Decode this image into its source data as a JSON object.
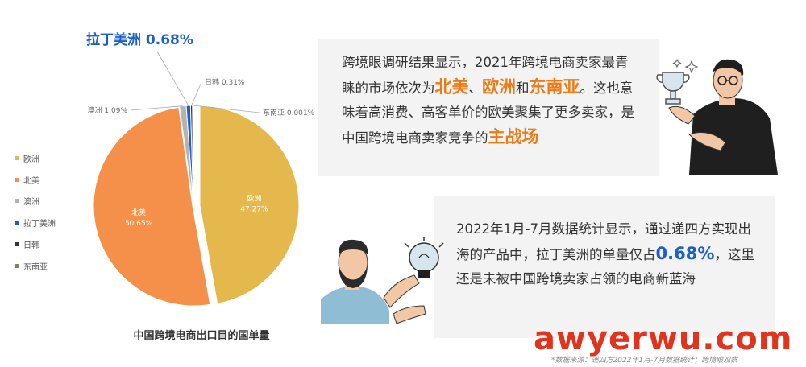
{
  "chart_data": {
    "type": "pie",
    "title": "中国跨境电商出口目的国单量",
    "highlight": "拉丁美洲 0.68%",
    "slices": [
      {
        "name": "欧洲",
        "value": 47.27,
        "label": "欧洲 47.27%",
        "color": "#e5b84d"
      },
      {
        "name": "北美",
        "value": 50.65,
        "label": "北美 50.65%",
        "color": "#f5904a"
      },
      {
        "name": "澳洲",
        "value": 1.09,
        "label": "澳洲 1.09%",
        "color": "#b3b3b3"
      },
      {
        "name": "拉丁美洲",
        "value": 0.68,
        "label": "拉丁美洲 0.68%",
        "color": "#1a5fd1"
      },
      {
        "name": "日韩",
        "value": 0.31,
        "label": "日韩 0.31%",
        "color": "#333333"
      },
      {
        "name": "东南亚",
        "value": 0.001,
        "label": "东南亚 0.001%",
        "color": "#8c7a6b"
      }
    ],
    "legend_position": "left"
  },
  "card1": {
    "p1": "跨境眼调研结果显示，2021年跨境电商卖家最青睐的市场依次为",
    "h1": "北美",
    "sep1": "、",
    "h2": "欧洲",
    "sep2": "和",
    "h3": "东南亚",
    "p2": "。这也意味着高消费、高客单价的欧美聚集了更多卖家，是中国跨境电商卖家竞争的",
    "h4": "主战场"
  },
  "card2": {
    "p1": "2022年1月-7月数据统计显示，通过递四方实现出海的产品中，拉丁美洲的单量仅占",
    "h1": "0.68%",
    "p2": "，这里还是未被中国跨境卖家占领的电商新蓝海"
  },
  "watermark": "awyerwu.com",
  "footnote": "*数据来源：递四方2022年1月-7月数据统计；跨境眼观察",
  "icons": [
    "trophy-icon",
    "lightbulb-icon",
    "sparkle-icon"
  ]
}
